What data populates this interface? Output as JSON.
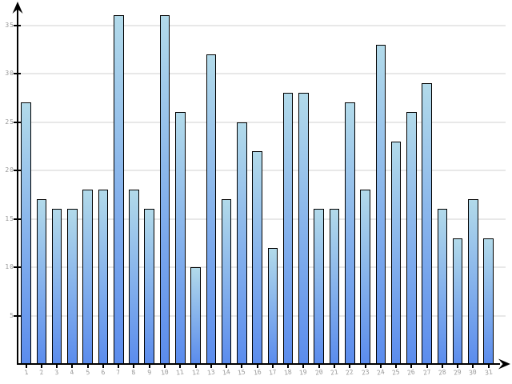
{
  "chart_data": {
    "type": "bar",
    "title": "",
    "categories": [
      "1",
      "2",
      "3",
      "4",
      "5",
      "6",
      "7",
      "8",
      "9",
      "10",
      "11",
      "12",
      "13",
      "14",
      "15",
      "16",
      "17",
      "18",
      "19",
      "20",
      "21",
      "22",
      "23",
      "24",
      "25",
      "26",
      "27",
      "28",
      "29",
      "30",
      "31"
    ],
    "values": [
      27,
      17,
      16,
      16,
      18,
      18,
      36,
      18,
      16,
      36,
      26,
      10,
      32,
      17,
      25,
      22,
      12,
      28,
      28,
      16,
      16,
      27,
      18,
      33,
      23,
      26,
      29,
      16,
      13,
      17,
      13
    ],
    "yticks": [
      5,
      10,
      15,
      20,
      25,
      30,
      35
    ],
    "ylim": [
      0,
      37
    ],
    "xlabel": "",
    "ylabel": "",
    "grid": true,
    "legend": "none",
    "colors": {
      "bar_gradient_top": "#b2daea",
      "bar_gradient_bottom": "#5b8ced",
      "bar_border": "#000000",
      "gridline": "#e8e8e8",
      "tick_label": "#999999",
      "axis": "#000000",
      "background": "#ffffff"
    }
  }
}
